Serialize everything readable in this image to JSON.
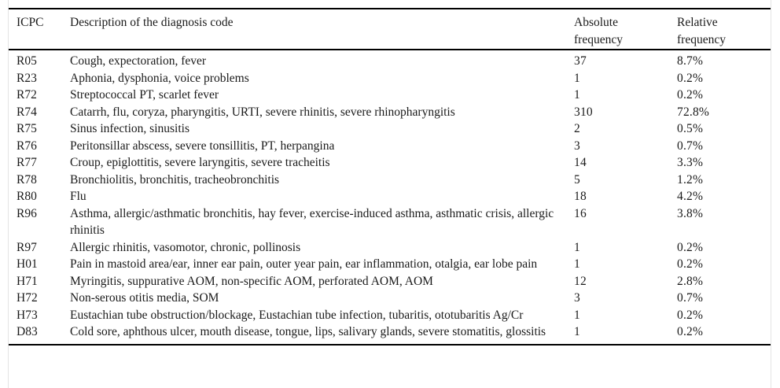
{
  "table": {
    "columns": {
      "code": "ICPC",
      "description": "Description of the diagnosis code",
      "absolute": "Absolute frequency",
      "relative": "Relative frequency"
    },
    "rows": [
      {
        "code": "R05",
        "description": "Cough, expectoration, fever",
        "absolute": "37",
        "relative": "8.7%"
      },
      {
        "code": "R23",
        "description": "Aphonia, dysphonia, voice problems",
        "absolute": "1",
        "relative": "0.2%"
      },
      {
        "code": "R72",
        "description": "Streptococcal PT, scarlet fever",
        "absolute": "1",
        "relative": "0.2%"
      },
      {
        "code": "R74",
        "description": "Catarrh, flu, coryza, pharyngitis, URTI, severe rhinitis, severe rhinopharyngitis",
        "absolute": "310",
        "relative": "72.8%"
      },
      {
        "code": "R75",
        "description": "Sinus infection, sinusitis",
        "absolute": "2",
        "relative": "0.5%"
      },
      {
        "code": "R76",
        "description": "Peritonsillar abscess, severe tonsillitis, PT, herpangina",
        "absolute": "3",
        "relative": "0.7%"
      },
      {
        "code": "R77",
        "description": "Croup, epiglottitis, severe laryngitis, severe tracheitis",
        "absolute": "14",
        "relative": "3.3%"
      },
      {
        "code": "R78",
        "description": "Bronchiolitis, bronchitis, tracheobronchitis",
        "absolute": "5",
        "relative": "1.2%"
      },
      {
        "code": "R80",
        "description": "Flu",
        "absolute": "18",
        "relative": "4.2%"
      },
      {
        "code": "R96",
        "description": "Asthma, allergic/asthmatic bronchitis, hay fever, exercise-induced asthma, asthmatic crisis, allergic rhinitis",
        "absolute": "16",
        "relative": "3.8%"
      },
      {
        "code": "R97",
        "description": "Allergic rhinitis, vasomotor, chronic, pollinosis",
        "absolute": "1",
        "relative": "0.2%"
      },
      {
        "code": "H01",
        "description": "Pain in mastoid area/ear, inner ear pain, outer year pain, ear inflammation, otalgia, ear lobe pain",
        "absolute": "1",
        "relative": "0.2%"
      },
      {
        "code": "H71",
        "description": "Myringitis, suppurative AOM, non-specific AOM, perforated AOM, AOM",
        "absolute": "12",
        "relative": "2.8%"
      },
      {
        "code": "H72",
        "description": "Non-serous otitis media, SOM",
        "absolute": "3",
        "relative": "0.7%"
      },
      {
        "code": "H73",
        "description": "Eustachian tube obstruction/blockage, Eustachian tube infection, tubaritis, ototubaritis Ag/Cr",
        "absolute": "1",
        "relative": "0.2%"
      },
      {
        "code": "D83",
        "description": "Cold sore, aphthous ulcer, mouth disease, tongue, lips, salivary glands, severe stomatitis, glossitis",
        "absolute": "1",
        "relative": "0.2%"
      }
    ]
  },
  "colors": {
    "text": "#1a1a1a",
    "rule": "#000000",
    "frame_border": "#e4e4e4",
    "background": "#ffffff"
  }
}
